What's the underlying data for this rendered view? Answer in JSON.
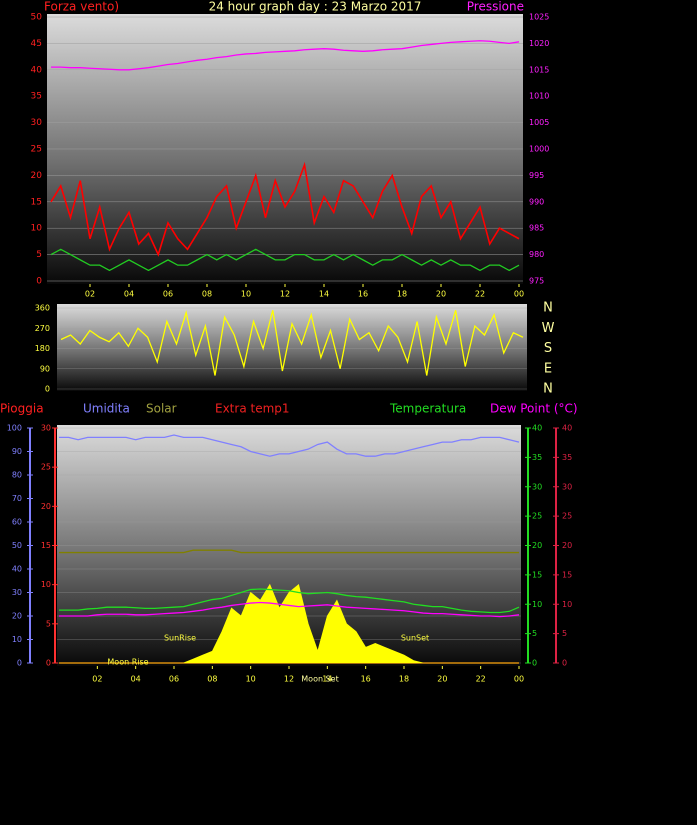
{
  "chart_data": [
    {
      "type": "line",
      "title": "24 hour graph day : 23 Marzo 2017",
      "y_label": "Forza vento)",
      "y2_label": "Pressione",
      "x": [
        0,
        0.5,
        1,
        1.5,
        2,
        2.5,
        3,
        3.5,
        4,
        4.5,
        5,
        5.5,
        6,
        6.5,
        7,
        7.5,
        8,
        8.5,
        9,
        9.5,
        10,
        10.5,
        11,
        11.5,
        12,
        12.5,
        13,
        13.5,
        14,
        14.5,
        15,
        15.5,
        16,
        16.5,
        17,
        17.5,
        18,
        18.5,
        19,
        19.5,
        20,
        20.5,
        21,
        21.5,
        22,
        22.5,
        23,
        23.5,
        24
      ],
      "xlim": [
        0,
        24
      ],
      "xticks": [
        {
          "value": 2,
          "label": "02"
        },
        {
          "value": 4,
          "label": "04"
        },
        {
          "value": 6,
          "label": "06"
        },
        {
          "value": 8,
          "label": "08"
        },
        10,
        12,
        14,
        16,
        18,
        20,
        22,
        {
          "value": 24,
          "label": "00"
        }
      ],
      "ylim": [
        0,
        50
      ],
      "yticks": [
        0,
        5,
        10,
        15,
        20,
        25,
        30,
        35,
        40,
        45,
        50
      ],
      "y2lim": [
        975,
        1025
      ],
      "y2ticks": [
        975,
        980,
        985,
        990,
        995,
        1000,
        1005,
        1010,
        1015,
        1020,
        1025
      ],
      "series": [
        {
          "color": "#ff0000",
          "values": [
            15,
            18,
            12,
            19,
            8,
            14,
            6,
            10,
            13,
            7,
            9,
            5,
            11,
            8,
            6,
            9,
            12,
            16,
            18,
            10,
            15,
            20,
            12,
            19,
            14,
            17,
            22,
            11,
            16,
            13,
            19,
            18,
            15,
            12,
            17,
            20,
            14,
            9,
            16,
            18,
            12,
            15,
            8,
            11,
            14,
            7,
            10,
            9,
            8
          ]
        },
        {
          "color": "#22cc22",
          "values": [
            5,
            6,
            5,
            4,
            3,
            3,
            2,
            3,
            4,
            3,
            2,
            3,
            4,
            3,
            3,
            4,
            5,
            4,
            5,
            4,
            5,
            6,
            5,
            4,
            4,
            5,
            5,
            4,
            4,
            5,
            4,
            5,
            4,
            3,
            4,
            4,
            5,
            4,
            3,
            4,
            3,
            4,
            3,
            3,
            2,
            3,
            3,
            2,
            3
          ]
        },
        {
          "color": "#ff00ff",
          "axis": "y2",
          "values": [
            1015.5,
            1015.5,
            1015.4,
            1015.4,
            1015.3,
            1015.2,
            1015.1,
            1015,
            1015,
            1015.2,
            1015.4,
            1015.7,
            1016,
            1016.2,
            1016.5,
            1016.8,
            1017,
            1017.3,
            1017.5,
            1017.8,
            1018,
            1018.1,
            1018.3,
            1018.4,
            1018.5,
            1018.6,
            1018.8,
            1018.9,
            1019,
            1018.9,
            1018.7,
            1018.6,
            1018.5,
            1018.6,
            1018.8,
            1018.9,
            1019,
            1019.3,
            1019.6,
            1019.8,
            1020,
            1020.2,
            1020.3,
            1020.4,
            1020.5,
            1020.4,
            1020.2,
            1020,
            1020.3
          ]
        }
      ]
    },
    {
      "type": "line",
      "x": [
        0,
        0.5,
        1,
        1.5,
        2,
        2.5,
        3,
        3.5,
        4,
        4.5,
        5,
        5.5,
        6,
        6.5,
        7,
        7.5,
        8,
        8.5,
        9,
        9.5,
        10,
        10.5,
        11,
        11.5,
        12,
        12.5,
        13,
        13.5,
        14,
        14.5,
        15,
        15.5,
        16,
        16.5,
        17,
        17.5,
        18,
        18.5,
        19,
        19.5,
        20,
        20.5,
        21,
        21.5,
        22,
        22.5,
        23,
        23.5,
        24
      ],
      "xlim": [
        0,
        24
      ],
      "ylim": [
        0,
        360
      ],
      "yticks": [
        0,
        90,
        180,
        270,
        360
      ],
      "y2lim": [
        0,
        360
      ],
      "y2ticks": [
        {
          "value": 360,
          "label": "N"
        },
        {
          "value": 270,
          "label": "W"
        },
        {
          "value": 180,
          "label": "S"
        },
        {
          "value": 90,
          "label": "E"
        },
        {
          "value": 0,
          "label": "N"
        }
      ],
      "series": [
        {
          "color": "#ffff00",
          "values": [
            220,
            240,
            200,
            260,
            230,
            210,
            250,
            190,
            270,
            230,
            120,
            300,
            200,
            340,
            150,
            280,
            60,
            320,
            240,
            100,
            300,
            180,
            350,
            80,
            290,
            200,
            330,
            140,
            260,
            90,
            310,
            220,
            250,
            170,
            280,
            230,
            120,
            300,
            60,
            320,
            200,
            350,
            100,
            280,
            240,
            330,
            160,
            250,
            230
          ]
        }
      ]
    },
    {
      "type": "line",
      "labels": [
        "Extra temp1"
      ],
      "annotations": [
        "Moon Rise",
        "SunRise",
        "SunSet",
        "Moon Set"
      ],
      "x": [
        0,
        0.5,
        1,
        1.5,
        2,
        2.5,
        3,
        3.5,
        4,
        4.5,
        5,
        5.5,
        6,
        6.5,
        7,
        7.5,
        8,
        8.5,
        9,
        9.5,
        10,
        10.5,
        11,
        11.5,
        12,
        12.5,
        13,
        13.5,
        14,
        14.5,
        15,
        15.5,
        16,
        16.5,
        17,
        17.5,
        18,
        18.5,
        19,
        19.5,
        20,
        20.5,
        21,
        21.5,
        22,
        22.5,
        23,
        23.5,
        24
      ],
      "xlim": [
        0,
        24
      ],
      "xticks": [
        {
          "value": 2,
          "label": "02"
        },
        {
          "value": 4,
          "label": "04"
        },
        {
          "value": 6,
          "label": "06"
        },
        {
          "value": 8,
          "label": "08"
        },
        10,
        12,
        14,
        16,
        18,
        20,
        22,
        {
          "value": 24,
          "label": "00"
        }
      ],
      "ylim": [
        0,
        30
      ],
      "yticks": [
        0,
        5,
        10,
        15,
        20,
        25,
        30
      ],
      "y1lim": [
        0,
        100
      ],
      "y1ticks": [
        0,
        10,
        20,
        30,
        40,
        50,
        60,
        70,
        80,
        90,
        100
      ],
      "y2lim": [
        0,
        40
      ],
      "y2ticks": [
        0,
        5,
        10,
        15,
        20,
        25,
        30,
        35,
        40
      ],
      "y3lim": [
        0,
        40
      ],
      "y3ticks": [
        0,
        5,
        10,
        15,
        20,
        25,
        30,
        35,
        40
      ],
      "series": [
        {
          "name": "Pioggia",
          "color": "#ff2222",
          "values": [
            0,
            0,
            0,
            0,
            0,
            0,
            0,
            0,
            0,
            0,
            0,
            0,
            0,
            0,
            0,
            0,
            0,
            0,
            0,
            0,
            0,
            0,
            0,
            0,
            0,
            0,
            0,
            0,
            0,
            0,
            0,
            0,
            0,
            0,
            0,
            0,
            0,
            0,
            0,
            0,
            0,
            0,
            0,
            0,
            0,
            0,
            0,
            0,
            0
          ]
        },
        {
          "name": "Umidita",
          "color": "#8080ff",
          "axis": "y1",
          "values": [
            96,
            96,
            95,
            96,
            96,
            96,
            96,
            96,
            95,
            96,
            96,
            96,
            97,
            96,
            96,
            96,
            95,
            94,
            93,
            92,
            90,
            89,
            88,
            89,
            89,
            90,
            91,
            93,
            94,
            91,
            89,
            89,
            88,
            88,
            89,
            89,
            90,
            91,
            92,
            93,
            94,
            94,
            95,
            95,
            96,
            96,
            96,
            95,
            94
          ]
        },
        {
          "name": "Solar",
          "color": "#808000",
          "axis": "y1",
          "values": [
            47,
            47,
            47,
            47,
            47,
            47,
            47,
            47,
            47,
            47,
            47,
            47,
            47,
            47,
            48,
            48,
            48,
            48,
            48,
            47,
            47,
            47,
            47,
            47,
            47,
            47,
            47,
            47,
            47,
            47,
            47,
            47,
            47,
            47,
            47,
            47,
            47,
            47,
            47,
            47,
            47,
            47,
            47,
            47,
            47,
            47,
            47,
            47,
            47
          ]
        },
        {
          "color": "#ffff00",
          "area": true,
          "values": [
            0,
            0,
            0,
            0,
            0,
            0,
            0,
            0,
            0,
            0,
            0,
            0,
            0,
            0,
            0.5,
            1,
            1.5,
            4,
            7,
            6,
            9,
            8,
            10,
            7,
            9,
            10,
            5,
            1.5,
            6,
            8,
            5,
            4,
            2,
            2.5,
            2,
            1.5,
            1,
            0.3,
            0,
            0,
            0,
            0,
            0,
            0,
            0,
            0,
            0,
            0,
            0
          ]
        },
        {
          "name": "Temperatura",
          "color": "#22dd22",
          "axis": "y2",
          "values": [
            9,
            9,
            9,
            9.2,
            9.3,
            9.5,
            9.5,
            9.5,
            9.4,
            9.3,
            9.3,
            9.4,
            9.5,
            9.6,
            10,
            10.4,
            10.8,
            11,
            11.5,
            12,
            12.5,
            12.6,
            12.5,
            12.4,
            12.3,
            12,
            11.8,
            11.9,
            12,
            11.8,
            11.5,
            11.3,
            11.2,
            11,
            10.8,
            10.6,
            10.4,
            10,
            9.8,
            9.6,
            9.6,
            9.3,
            9,
            8.8,
            8.7,
            8.6,
            8.6,
            8.8,
            9.5
          ]
        },
        {
          "name": "Dew Point (°C)",
          "color": "#ff00ff",
          "axis": "y3",
          "values": [
            8,
            8,
            8,
            8,
            8.2,
            8.3,
            8.3,
            8.3,
            8.2,
            8.2,
            8.3,
            8.4,
            8.5,
            8.6,
            8.8,
            9,
            9.3,
            9.5,
            9.8,
            10,
            10.2,
            10.3,
            10.2,
            10,
            9.8,
            9.6,
            9.7,
            9.8,
            9.9,
            9.7,
            9.5,
            9.4,
            9.3,
            9.2,
            9.1,
            9,
            8.9,
            8.7,
            8.5,
            8.4,
            8.4,
            8.3,
            8.2,
            8.1,
            8,
            8,
            7.9,
            8,
            8.2
          ]
        }
      ]
    }
  ]
}
